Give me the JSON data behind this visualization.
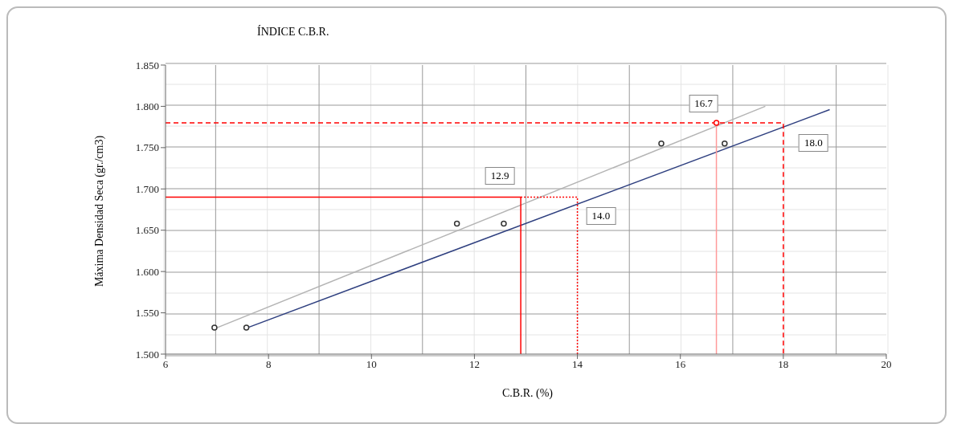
{
  "chart_data": {
    "type": "line",
    "title": "ÍNDICE C.B.R.",
    "xlabel": "C.B.R. (%)",
    "ylabel": "Máxima Densidad Seca (gr./cm3)",
    "xlim": [
      6,
      20
    ],
    "xticks": [
      6,
      8,
      10,
      12,
      14,
      16,
      18,
      20
    ],
    "ylim": [
      1.5,
      1.85
    ],
    "yticks": [
      {
        "value": 1.5,
        "label": "1.500"
      },
      {
        "value": 1.55,
        "label": "1.550"
      },
      {
        "value": 1.6,
        "label": "1.600"
      },
      {
        "value": 1.65,
        "label": "1.650"
      },
      {
        "value": 1.7,
        "label": "1.700"
      },
      {
        "value": 1.75,
        "label": "1.750"
      },
      {
        "value": 1.8,
        "label": "1.800"
      },
      {
        "value": 1.85,
        "label": "1.850"
      }
    ],
    "grid": true,
    "series": [
      {
        "color": "#b4b4b4",
        "x": [
          7.0,
          17.65
        ],
        "values": [
          1.532,
          1.8
        ],
        "marker": "none",
        "line_style": "solid"
      },
      {
        "color": "#2e3f7f",
        "x": [
          7.55,
          18.9
        ],
        "values": [
          1.531,
          1.796
        ],
        "marker": "none",
        "line_style": "solid"
      },
      {
        "type": "line",
        "color": "#ff0000",
        "x": [
          6,
          12.9,
          12.9
        ],
        "values": [
          1.69,
          1.69,
          1.5
        ],
        "marker": "none",
        "line_style": "solid"
      },
      {
        "type": "line",
        "color": "#ff0000",
        "x": [
          12.9,
          14.0,
          14.0
        ],
        "values": [
          1.69,
          1.69,
          1.5
        ],
        "marker": "none",
        "line_style": "dotted"
      },
      {
        "type": "line",
        "color": "#ff0000",
        "x": [
          6,
          18.0,
          18.0
        ],
        "values": [
          1.78,
          1.78,
          1.5
        ],
        "marker": "none",
        "line_style": "dashed"
      },
      {
        "type": "line",
        "color": "#ff9a9a",
        "x": [
          16.7,
          16.7
        ],
        "values": [
          1.78,
          1.5
        ],
        "marker": "none",
        "line_style": "solid"
      },
      {
        "type": "scatter",
        "color": "#333333",
        "x": [
          6.95,
          11.66,
          15.63,
          7.57,
          12.57,
          16.86
        ],
        "values": [
          1.532,
          1.658,
          1.755,
          1.532,
          1.658,
          1.755
        ],
        "marker": "circle"
      },
      {
        "type": "scatter",
        "color": "#ff0000",
        "x": [
          16.7
        ],
        "values": [
          1.78
        ],
        "marker": "circle"
      }
    ],
    "annotations": [
      {
        "text": "12.9",
        "x": 12.9,
        "y": 1.69
      },
      {
        "text": "14.0",
        "x": 14.0,
        "y": 1.69
      },
      {
        "text": "16.7",
        "x": 16.7,
        "y": 1.78
      },
      {
        "text": "18.0",
        "x": 18.0,
        "y": 1.78
      }
    ]
  }
}
